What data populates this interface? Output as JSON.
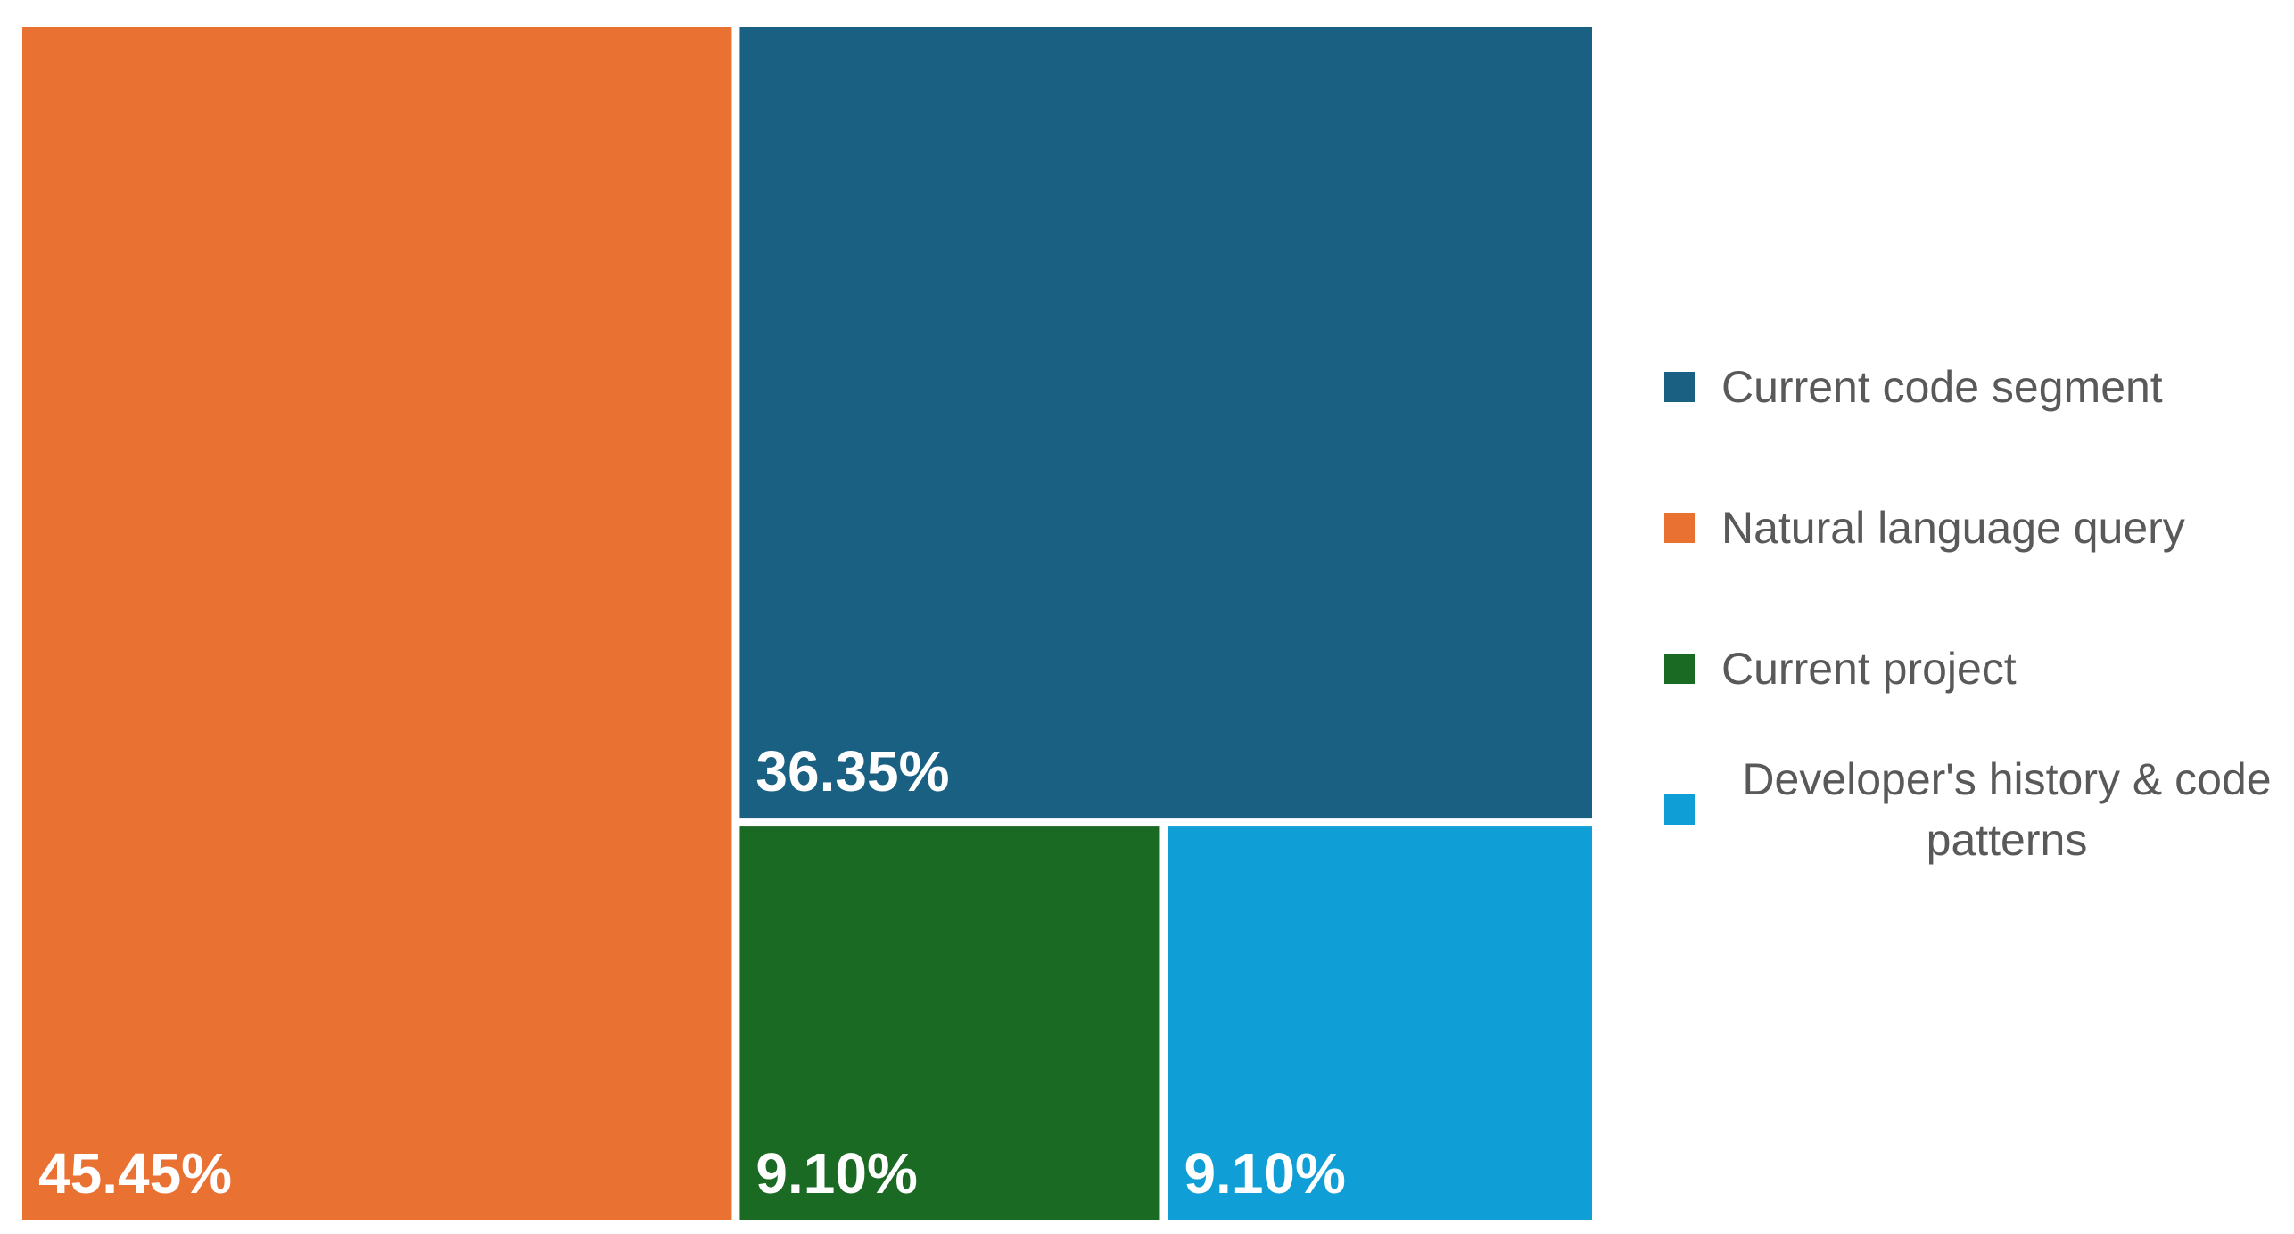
{
  "chart_data": {
    "type": "treemap",
    "title": "",
    "items": [
      {
        "name": "Natural language query",
        "value": 45.45,
        "label": "45.45%",
        "color": "#E97132"
      },
      {
        "name": "Current code segment",
        "value": 36.35,
        "label": "36.35%",
        "color": "#196083"
      },
      {
        "name": "Current project",
        "value": 9.1,
        "label": "9.10%",
        "color": "#1B6A24"
      },
      {
        "name": "Developer's history & code patterns",
        "value": 9.1,
        "label": "9.10%",
        "color": "#0F9ED5"
      }
    ],
    "legend": {
      "position": "right",
      "entries": [
        {
          "label": "Current code segment",
          "color": "#196083"
        },
        {
          "label": "Natural language query",
          "color": "#E97132"
        },
        {
          "label": "Current project",
          "color": "#1B6A24"
        },
        {
          "label": "Developer's history & code patterns",
          "color": "#0F9ED5"
        }
      ]
    }
  }
}
